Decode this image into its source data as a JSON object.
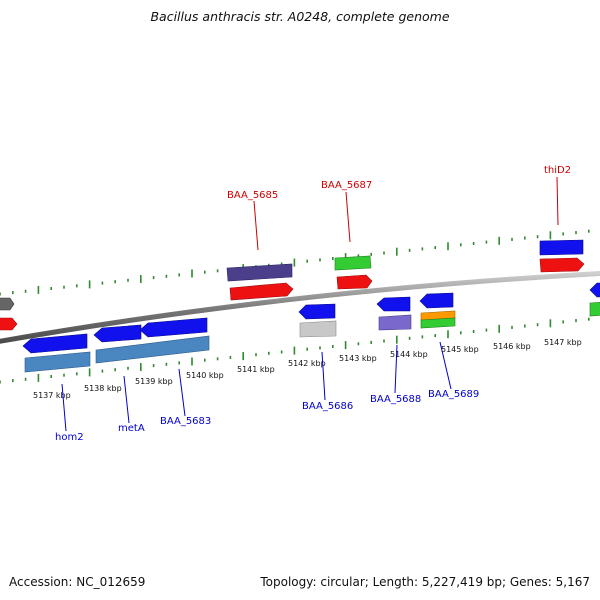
{
  "title": "Bacillus anthracis str. A0248, complete genome",
  "footer": {
    "accession": "Accession: NC_012659",
    "summary": "Topology: circular; Length: 5,227,419 bp; Genes: 5,167"
  },
  "colors": {
    "backbone": "#8c8c8c",
    "tick": "#2e8b2e",
    "label_top": "#cc0000",
    "label_bottom": "#0000cc"
  },
  "scale_labels": [
    "5137 kbp",
    "5138 kbp",
    "5139 kbp",
    "5140 kbp",
    "5141 kbp",
    "5142 kbp",
    "5143 kbp",
    "5144 kbp",
    "5145 kbp",
    "5146 kbp",
    "5147 kbp"
  ],
  "gene_labels_top": [
    "BAA_5685",
    "BAA_5687",
    "thiD2"
  ],
  "gene_labels_bottom": [
    "hom2",
    "metA",
    "BAA_5683",
    "BAA_5686",
    "BAA_5688",
    "BAA_5689"
  ]
}
